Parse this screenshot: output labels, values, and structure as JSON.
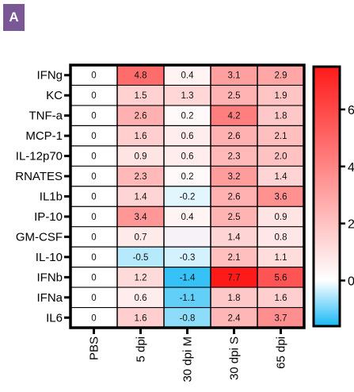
{
  "panel_label": "A",
  "chart_data": {
    "type": "heatmap",
    "rows": [
      "IFNg",
      "KC",
      "TNF-a",
      "MCP-1",
      "IL-12p70",
      "RNATES",
      "IL1b",
      "IP-10",
      "GM-CSF",
      "IL-10",
      "IFNb",
      "IFNa",
      "IL6"
    ],
    "columns": [
      "PBS",
      "5 dpi",
      "30 dpi M",
      "30 dpi S",
      "65 dpi"
    ],
    "values": [
      [
        0,
        4.8,
        0.4,
        3.1,
        2.9
      ],
      [
        0,
        1.5,
        1.3,
        2.5,
        1.9
      ],
      [
        0,
        2.6,
        0.2,
        4.2,
        1.8
      ],
      [
        0,
        1.6,
        0.6,
        2.6,
        2.1
      ],
      [
        0,
        0.9,
        0.6,
        2.3,
        2.0
      ],
      [
        0,
        2.3,
        0.2,
        3.2,
        1.4
      ],
      [
        0,
        1.4,
        -0.2,
        2.6,
        3.6
      ],
      [
        0,
        3.4,
        0.4,
        2.5,
        0.9
      ],
      [
        0,
        0.7,
        null,
        1.4,
        0.8
      ],
      [
        0,
        -0.5,
        -0.3,
        2.1,
        1.1
      ],
      [
        0,
        1.2,
        -1.4,
        7.7,
        5.6
      ],
      [
        0,
        0.6,
        -1.1,
        1.8,
        1.6
      ],
      [
        0,
        1.6,
        -0.8,
        2.4,
        3.7
      ]
    ],
    "value_labels": [
      [
        "0",
        "4.8",
        "0.4",
        "3.1",
        "2.9"
      ],
      [
        "0",
        "1.5",
        "1.3",
        "2.5",
        "1.9"
      ],
      [
        "0",
        "2.6",
        "0.2",
        "4.2",
        "1.8"
      ],
      [
        "0",
        "1.6",
        "0.6",
        "2.6",
        "2.1"
      ],
      [
        "0",
        "0.9",
        "0.6",
        "2.3",
        "2.0"
      ],
      [
        "0",
        "2.3",
        "0.2",
        "3.2",
        "1.4"
      ],
      [
        "0",
        "1.4",
        "-0.2",
        "2.6",
        "3.6"
      ],
      [
        "0",
        "3.4",
        "0.4",
        "2.5",
        "0.9"
      ],
      [
        "0",
        "0.7",
        "",
        "1.4",
        "0.8"
      ],
      [
        "0",
        "-0.5",
        "-0.3",
        "2.1",
        "1.1"
      ],
      [
        "0",
        "1.2",
        "-1.4",
        "7.7",
        "5.6"
      ],
      [
        "0",
        "0.6",
        "-1.1",
        "1.8",
        "1.6"
      ],
      [
        "0",
        "1.6",
        "-0.8",
        "2.4",
        "3.7"
      ]
    ],
    "colorbar": {
      "min": -1.6,
      "max": 7.5,
      "ticks": [
        0,
        2,
        4,
        6
      ],
      "tick_labels": [
        "0",
        "2",
        "4",
        "6"
      ],
      "low_color": "#19b9f5",
      "mid_color": "#ffffff",
      "high_color": "#ff1a1a",
      "placement": "right"
    }
  }
}
